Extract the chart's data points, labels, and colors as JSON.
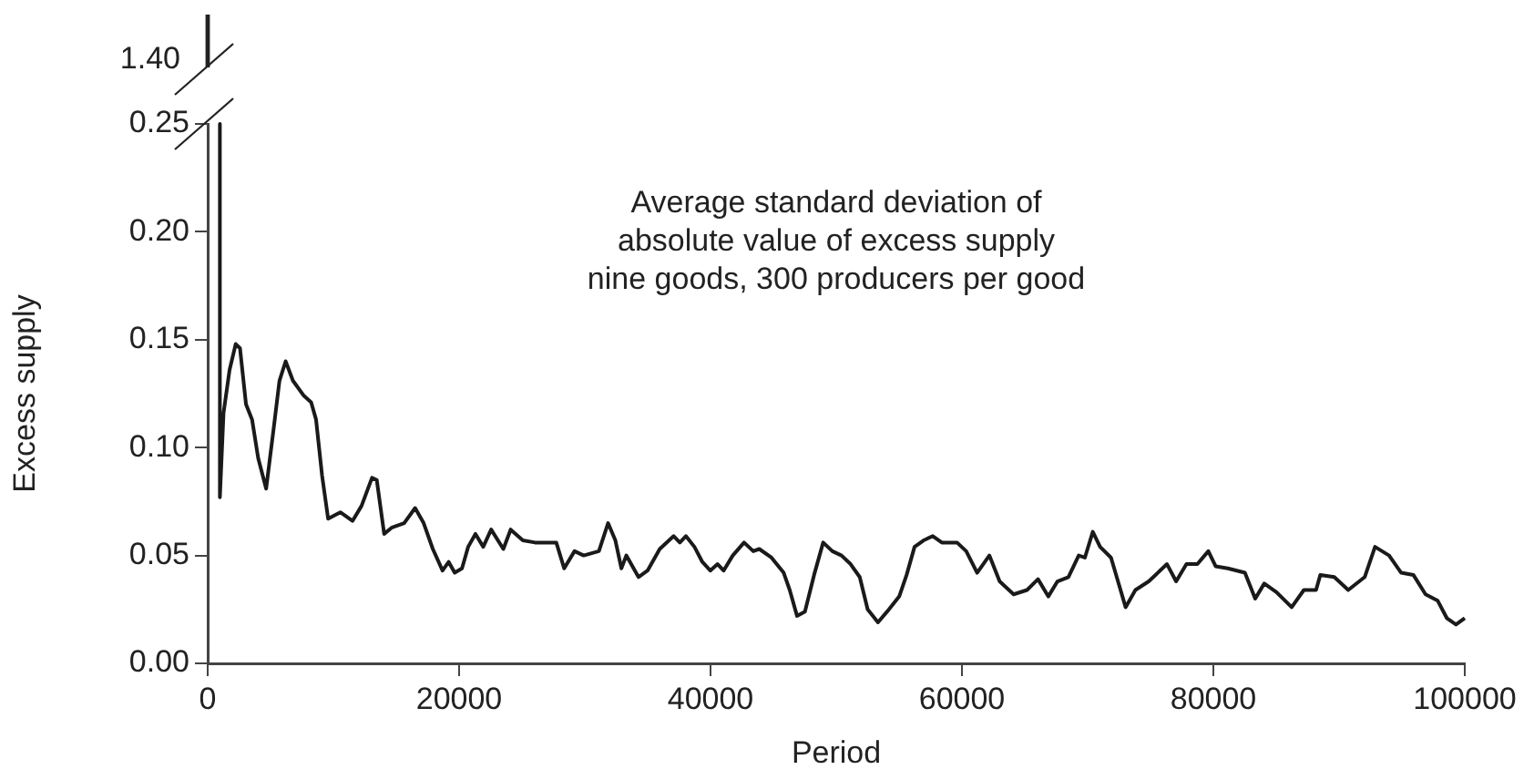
{
  "chart_data": {
    "type": "line",
    "xlabel": "Period",
    "ylabel": "Excess supply",
    "xlim": [
      0,
      100000
    ],
    "xticks": [
      0,
      20000,
      40000,
      60000,
      80000,
      100000
    ],
    "ylim": [
      0,
      0.25
    ],
    "yticks": [
      {
        "value": 0,
        "label": "0.00"
      },
      {
        "value": 0.05,
        "label": "0.05"
      },
      {
        "value": 0.1,
        "label": "0.10"
      },
      {
        "value": 0.15,
        "label": "0.15"
      },
      {
        "value": 0.2,
        "label": "0.20"
      },
      {
        "value": 0.25,
        "label": "0.25"
      }
    ],
    "grid": false,
    "marker": "none",
    "annotations": [
      "1.40",
      "Average standard deviation of\nabsolute value of excess supply\nnine goods, 300 producers per good"
    ],
    "series": [
      {
        "color": "#1a1a1a",
        "x": [
          970,
          970,
          1260,
          1740,
          2230,
          2570,
          3050,
          3530,
          4020,
          4650,
          5230,
          5710,
          6200,
          6780,
          7650,
          8230,
          8620,
          9100,
          9580,
          10550,
          11520,
          12240,
          13070,
          13450,
          14040,
          14670,
          15630,
          16500,
          17180,
          17910,
          18680,
          19170,
          19650,
          20230,
          20720,
          21300,
          21920,
          22550,
          23520,
          24100,
          25070,
          26040,
          27730,
          28360,
          29180,
          29910,
          31120,
          31850,
          32430,
          32910,
          33300,
          34270,
          34990,
          35960,
          37070,
          37560,
          38040,
          38720,
          39350,
          39980,
          40560,
          41040,
          41770,
          42670,
          43400,
          43880,
          44850,
          45820,
          46300,
          46880,
          47510,
          48240,
          48960,
          49690,
          50420,
          51140,
          51870,
          52500,
          53320,
          54050,
          55010,
          55600,
          56230,
          56950,
          57680,
          58400,
          59610,
          60340,
          61210,
          62180,
          63000,
          64110,
          65180,
          66050,
          66870,
          67600,
          68470,
          69290,
          69780,
          70410,
          70990,
          71860,
          73020,
          73800,
          74860,
          76310,
          77040,
          77860,
          78730,
          79600,
          80180,
          81150,
          82510,
          83330,
          84050,
          85020,
          86230,
          87200,
          88170,
          88510,
          89620,
          90730,
          92040,
          92860,
          93980,
          94940,
          95910,
          96880,
          97850,
          98570,
          99300,
          100000
        ],
        "values": [
          0.25,
          0.077,
          0.116,
          0.136,
          0.148,
          0.146,
          0.12,
          0.113,
          0.095,
          0.081,
          0.108,
          0.131,
          0.14,
          0.131,
          0.124,
          0.121,
          0.113,
          0.087,
          0.067,
          0.07,
          0.066,
          0.073,
          0.086,
          0.085,
          0.06,
          0.063,
          0.065,
          0.072,
          0.065,
          0.053,
          0.043,
          0.047,
          0.042,
          0.044,
          0.054,
          0.06,
          0.054,
          0.062,
          0.053,
          0.062,
          0.057,
          0.056,
          0.056,
          0.044,
          0.052,
          0.05,
          0.052,
          0.065,
          0.057,
          0.044,
          0.05,
          0.04,
          0.043,
          0.053,
          0.059,
          0.056,
          0.059,
          0.054,
          0.047,
          0.043,
          0.046,
          0.043,
          0.05,
          0.056,
          0.052,
          0.053,
          0.049,
          0.042,
          0.034,
          0.022,
          0.024,
          0.041,
          0.056,
          0.052,
          0.05,
          0.046,
          0.04,
          0.025,
          0.019,
          0.024,
          0.031,
          0.041,
          0.054,
          0.057,
          0.059,
          0.056,
          0.056,
          0.052,
          0.042,
          0.05,
          0.038,
          0.032,
          0.034,
          0.039,
          0.031,
          0.038,
          0.04,
          0.05,
          0.049,
          0.061,
          0.054,
          0.049,
          0.026,
          0.034,
          0.038,
          0.046,
          0.038,
          0.046,
          0.046,
          0.052,
          0.045,
          0.044,
          0.042,
          0.03,
          0.037,
          0.033,
          0.026,
          0.034,
          0.034,
          0.041,
          0.04,
          0.034,
          0.04,
          0.054,
          0.05,
          0.042,
          0.041,
          0.032,
          0.029,
          0.021,
          0.018,
          0.021
        ]
      }
    ]
  }
}
